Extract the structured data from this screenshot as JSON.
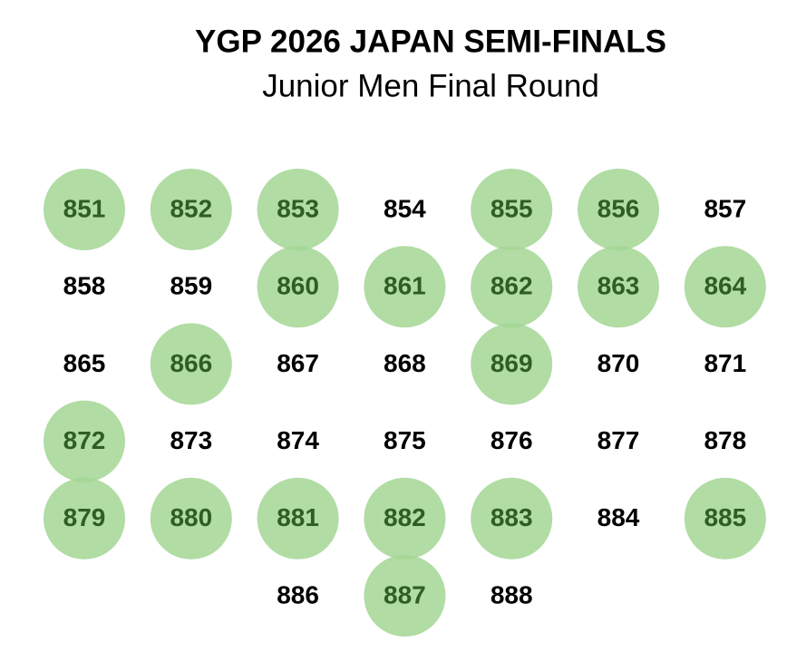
{
  "header": {
    "title": "YGP 2026 JAPAN SEMI-FINALS",
    "subtitle": "Junior Men Final Round"
  },
  "highlight_color": "#a3d694",
  "highlight_text_color": "#2e5e22",
  "rows": [
    [
      {
        "number": 851,
        "selected": true
      },
      {
        "number": 852,
        "selected": true
      },
      {
        "number": 853,
        "selected": true
      },
      {
        "number": 854,
        "selected": false
      },
      {
        "number": 855,
        "selected": true
      },
      {
        "number": 856,
        "selected": true
      },
      {
        "number": 857,
        "selected": false
      }
    ],
    [
      {
        "number": 858,
        "selected": false
      },
      {
        "number": 859,
        "selected": false
      },
      {
        "number": 860,
        "selected": true
      },
      {
        "number": 861,
        "selected": true
      },
      {
        "number": 862,
        "selected": true
      },
      {
        "number": 863,
        "selected": true
      },
      {
        "number": 864,
        "selected": true
      }
    ],
    [
      {
        "number": 865,
        "selected": false
      },
      {
        "number": 866,
        "selected": true
      },
      {
        "number": 867,
        "selected": false
      },
      {
        "number": 868,
        "selected": false
      },
      {
        "number": 869,
        "selected": true
      },
      {
        "number": 870,
        "selected": false
      },
      {
        "number": 871,
        "selected": false
      }
    ],
    [
      {
        "number": 872,
        "selected": true
      },
      {
        "number": 873,
        "selected": false
      },
      {
        "number": 874,
        "selected": false
      },
      {
        "number": 875,
        "selected": false
      },
      {
        "number": 876,
        "selected": false
      },
      {
        "number": 877,
        "selected": false
      },
      {
        "number": 878,
        "selected": false
      }
    ],
    [
      {
        "number": 879,
        "selected": true
      },
      {
        "number": 880,
        "selected": true
      },
      {
        "number": 881,
        "selected": true
      },
      {
        "number": 882,
        "selected": true
      },
      {
        "number": 883,
        "selected": true
      },
      {
        "number": 884,
        "selected": false
      },
      {
        "number": 885,
        "selected": true
      }
    ],
    [
      null,
      null,
      {
        "number": 886,
        "selected": false
      },
      {
        "number": 887,
        "selected": true
      },
      {
        "number": 888,
        "selected": false
      }
    ]
  ]
}
